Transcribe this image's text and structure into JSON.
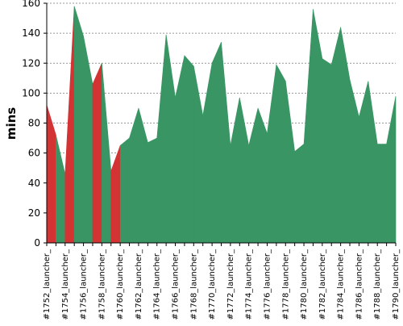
{
  "chart_data": {
    "type": "area",
    "title": "",
    "xlabel": "",
    "ylabel": "mins",
    "ylim": [
      0,
      160
    ],
    "yticks": [
      0,
      20,
      40,
      60,
      80,
      100,
      120,
      140,
      160
    ],
    "grid": true,
    "legend": "none",
    "colors": {
      "pass": "#3a9564",
      "fail": "#d43333"
    },
    "tick_labels": [
      "#1752_launcher_",
      "#1754_launcher_",
      "#1756_launcher_",
      "#1758_launcher_",
      "#1760_launcher_",
      "#1762_launcher_",
      "#1764_launcher_",
      "#1766_launcher_",
      "#1768_launcher_",
      "#1770_launcher_",
      "#1772_launcher_",
      "#1774_launcher_",
      "#1776_launcher_",
      "#1778_launcher_",
      "#1780_launcher_",
      "#1782_launcher_",
      "#1784_launcher_",
      "#1786_launcher_",
      "#1788_launcher_",
      "#1790_launcher_"
    ],
    "x": [
      1752,
      1753,
      1754,
      1755,
      1756,
      1757,
      1758,
      1759,
      1760,
      1761,
      1762,
      1763,
      1764,
      1765,
      1766,
      1767,
      1768,
      1769,
      1770,
      1771,
      1772,
      1773,
      1774,
      1775,
      1776,
      1777,
      1778,
      1779,
      1780,
      1781,
      1782,
      1783,
      1784,
      1785,
      1786,
      1787,
      1788,
      1789,
      1790
    ],
    "values": [
      92,
      72,
      46,
      158,
      138,
      106,
      120,
      48,
      65,
      70,
      90,
      67,
      70,
      139,
      97,
      125,
      118,
      85,
      120,
      134,
      65,
      97,
      65,
      90,
      73,
      119,
      108,
      61,
      66,
      156,
      123,
      119,
      144,
      109,
      84,
      108,
      66,
      66,
      98
    ],
    "status": [
      "fail",
      "pass",
      "fail",
      "pass",
      "pass",
      "fail",
      "pass",
      "fail",
      "pass",
      "pass",
      "pass",
      "pass",
      "pass",
      "pass",
      "pass",
      "pass",
      "pass",
      "pass",
      "pass",
      "pass",
      "pass",
      "pass",
      "pass",
      "pass",
      "pass",
      "pass",
      "pass",
      "pass",
      "pass",
      "pass",
      "pass",
      "pass",
      "pass",
      "pass",
      "pass",
      "pass",
      "pass",
      "pass",
      "pass"
    ]
  }
}
